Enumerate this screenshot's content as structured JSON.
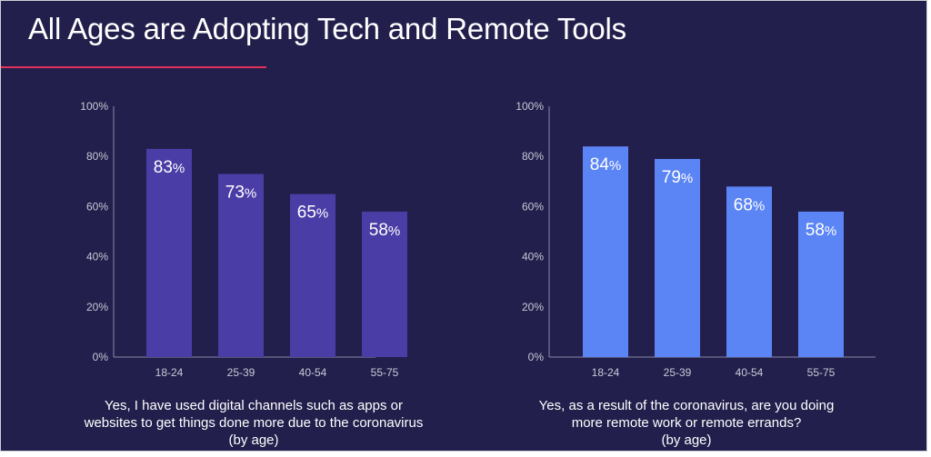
{
  "slide": {
    "title": "All Ages are Adopting Tech and Remote Tools"
  },
  "colors": {
    "background": "#221f4c",
    "accent_rule": "#e0325a",
    "chart1_bars": "#4b3da6",
    "chart2_bars": "#5b85f5",
    "axis": "#8a89a6"
  },
  "chart_data": [
    {
      "type": "bar",
      "categories": [
        "18-24",
        "25-39",
        "40-54",
        "55-75"
      ],
      "values": [
        83,
        73,
        65,
        58
      ],
      "data_labels": [
        {
          "num": "83",
          "suffix": "%"
        },
        {
          "num": "73",
          "suffix": "%"
        },
        {
          "num": "65",
          "suffix": "%"
        },
        {
          "num": "58",
          "suffix": "%"
        }
      ],
      "ylim": [
        0,
        100
      ],
      "yticks": [
        "0%",
        "20%",
        "40%",
        "60%",
        "80%",
        "100%"
      ],
      "grid": false,
      "caption": [
        "Yes, I have used digital channels such as apps or",
        "websites to get things done more due to the coronavirus",
        "(by age)"
      ]
    },
    {
      "type": "bar",
      "categories": [
        "18-24",
        "25-39",
        "40-54",
        "55-75"
      ],
      "values": [
        84,
        79,
        68,
        58
      ],
      "data_labels": [
        {
          "num": "84",
          "suffix": "%"
        },
        {
          "num": "79",
          "suffix": "%"
        },
        {
          "num": "68",
          "suffix": "%"
        },
        {
          "num": "58",
          "suffix": "%"
        }
      ],
      "ylim": [
        0,
        100
      ],
      "yticks": [
        "0%",
        "20%",
        "40%",
        "60%",
        "80%",
        "100%"
      ],
      "grid": false,
      "caption": [
        "Yes, as a result of the coronavirus, are you doing",
        "more remote work or remote errands?",
        "(by age)"
      ]
    }
  ]
}
